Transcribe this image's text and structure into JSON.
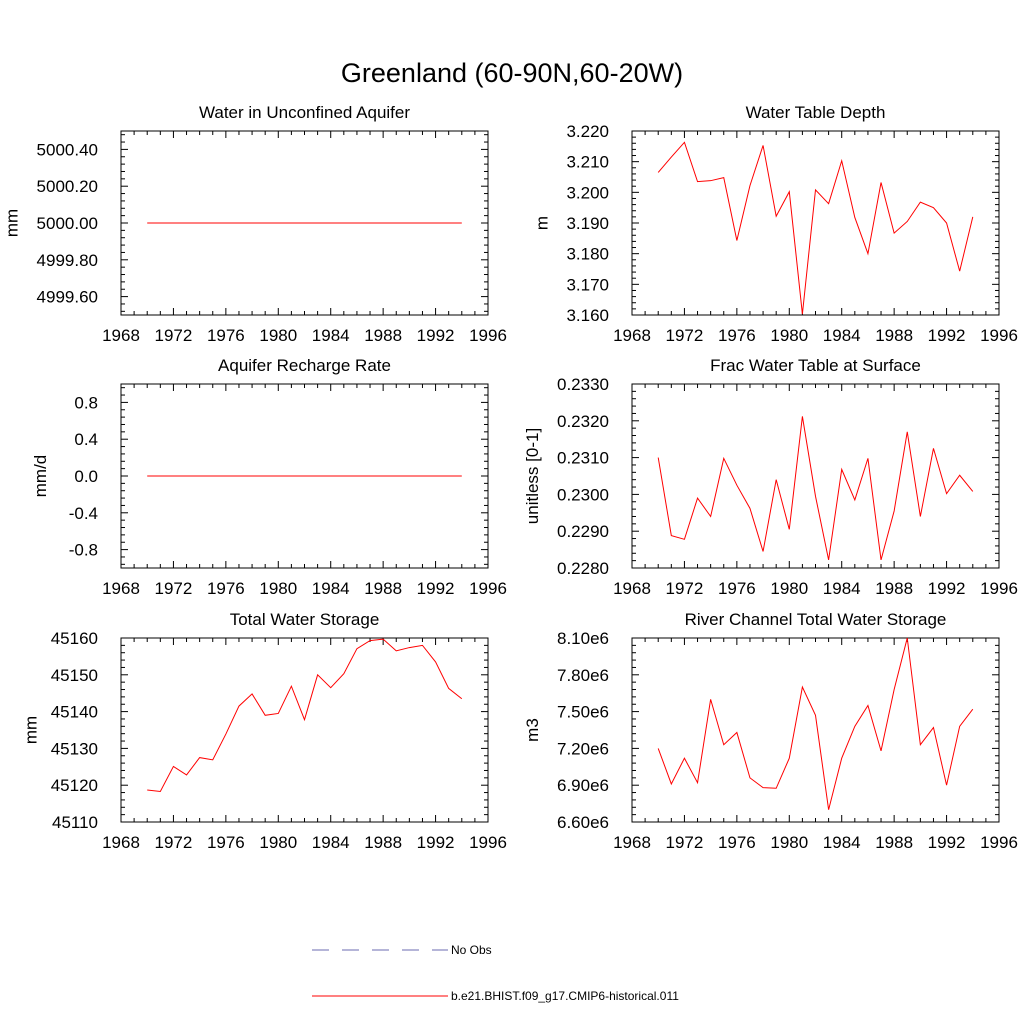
{
  "figure": {
    "title": "Greenland (60-90N,60-20W)"
  },
  "colors": {
    "model_line": "#ff0000",
    "obs_line": "#6b6bb0",
    "axes": "#000000"
  },
  "legend": {
    "items": [
      {
        "label": "No Obs",
        "style": "dashed",
        "color": "#6b6bb0"
      },
      {
        "label": "b.e21.BHIST.f09_g17.CMIP6-historical.011",
        "style": "solid",
        "color": "#ff0000"
      }
    ]
  },
  "chart_data": [
    {
      "type": "line",
      "title": "Water in Unconfined Aquifer",
      "ylabel": "mm",
      "xlim": [
        1968,
        1996
      ],
      "ylim": [
        4999.5,
        5000.5
      ],
      "xticks": [
        1968,
        1972,
        1976,
        1980,
        1984,
        1988,
        1992,
        1996
      ],
      "yticks": [
        4999.6,
        4999.8,
        5000.0,
        5000.2,
        5000.4
      ],
      "ytick_labels": [
        "4999.60",
        "4999.80",
        "5000.00",
        "5000.20",
        "5000.40"
      ],
      "x": [
        1970,
        1971,
        1972,
        1973,
        1974,
        1975,
        1976,
        1977,
        1978,
        1979,
        1980,
        1981,
        1982,
        1983,
        1984,
        1985,
        1986,
        1987,
        1988,
        1989,
        1990,
        1991,
        1992,
        1993,
        1994
      ],
      "series": [
        {
          "name": "b.e21.BHIST.f09_g17.CMIP6-historical.011",
          "values": [
            5000,
            5000,
            5000,
            5000,
            5000,
            5000,
            5000,
            5000,
            5000,
            5000,
            5000,
            5000,
            5000,
            5000,
            5000,
            5000,
            5000,
            5000,
            5000,
            5000,
            5000,
            5000,
            5000,
            5000,
            5000
          ]
        }
      ]
    },
    {
      "type": "line",
      "title": "Water Table Depth",
      "ylabel": "m",
      "xlim": [
        1968,
        1996
      ],
      "ylim": [
        3.16,
        3.22
      ],
      "xticks": [
        1968,
        1972,
        1976,
        1980,
        1984,
        1988,
        1992,
        1996
      ],
      "yticks": [
        3.16,
        3.17,
        3.18,
        3.19,
        3.2,
        3.21,
        3.22
      ],
      "ytick_labels": [
        "3.160",
        "3.170",
        "3.180",
        "3.190",
        "3.200",
        "3.210",
        "3.220"
      ],
      "x": [
        1970,
        1971,
        1972,
        1973,
        1974,
        1975,
        1976,
        1977,
        1978,
        1979,
        1980,
        1981,
        1982,
        1983,
        1984,
        1985,
        1986,
        1987,
        1988,
        1989,
        1990,
        1991,
        1992,
        1993,
        1994
      ],
      "series": [
        {
          "name": "b.e21.BHIST.f09_g17.CMIP6-historical.011",
          "values": [
            3.2065,
            3.2115,
            3.2163,
            3.2035,
            3.2038,
            3.2048,
            3.1843,
            3.2022,
            3.2153,
            3.1922,
            3.2002,
            3.1603,
            3.2008,
            3.1963,
            3.2103,
            3.1918,
            3.18,
            3.2032,
            3.1867,
            3.1905,
            3.1968,
            3.195,
            3.19,
            3.1743,
            3.192
          ]
        }
      ]
    },
    {
      "type": "line",
      "title": "Aquifer Recharge Rate",
      "ylabel": "mm/d",
      "xlim": [
        1968,
        1996
      ],
      "ylim": [
        -1.0,
        1.0
      ],
      "xticks": [
        1968,
        1972,
        1976,
        1980,
        1984,
        1988,
        1992,
        1996
      ],
      "yticks": [
        -0.8,
        -0.4,
        0.0,
        0.4,
        0.8
      ],
      "ytick_labels": [
        "-0.8",
        "-0.4",
        "0.0",
        "0.4",
        "0.8"
      ],
      "x": [
        1970,
        1971,
        1972,
        1973,
        1974,
        1975,
        1976,
        1977,
        1978,
        1979,
        1980,
        1981,
        1982,
        1983,
        1984,
        1985,
        1986,
        1987,
        1988,
        1989,
        1990,
        1991,
        1992,
        1993,
        1994
      ],
      "series": [
        {
          "name": "b.e21.BHIST.f09_g17.CMIP6-historical.011",
          "values": [
            0,
            0,
            0,
            0,
            0,
            0,
            0,
            0,
            0,
            0,
            0,
            0,
            0,
            0,
            0,
            0,
            0,
            0,
            0,
            0,
            0,
            0,
            0,
            0,
            0
          ]
        }
      ]
    },
    {
      "type": "line",
      "title": "Frac Water Table at Surface",
      "ylabel": "unitless [0-1]",
      "xlim": [
        1968,
        1996
      ],
      "ylim": [
        0.228,
        0.233
      ],
      "xticks": [
        1968,
        1972,
        1976,
        1980,
        1984,
        1988,
        1992,
        1996
      ],
      "yticks": [
        0.228,
        0.229,
        0.23,
        0.231,
        0.232,
        0.233
      ],
      "ytick_labels": [
        "0.2280",
        "0.2290",
        "0.2300",
        "0.2310",
        "0.2320",
        "0.2330"
      ],
      "x": [
        1970,
        1971,
        1972,
        1973,
        1974,
        1975,
        1976,
        1977,
        1978,
        1979,
        1980,
        1981,
        1982,
        1983,
        1984,
        1985,
        1986,
        1987,
        1988,
        1989,
        1990,
        1991,
        1992,
        1993,
        1994
      ],
      "series": [
        {
          "name": "b.e21.BHIST.f09_g17.CMIP6-historical.011",
          "values": [
            0.231,
            0.22888,
            0.22878,
            0.2299,
            0.2294,
            0.23098,
            0.23025,
            0.22962,
            0.22845,
            0.2304,
            0.22905,
            0.23212,
            0.22995,
            0.22822,
            0.23068,
            0.22985,
            0.23098,
            0.22822,
            0.22955,
            0.2317,
            0.2294,
            0.23125,
            0.23002,
            0.23052,
            0.23008
          ]
        }
      ]
    },
    {
      "type": "line",
      "title": "Total Water Storage",
      "ylabel": "mm",
      "xlim": [
        1968,
        1996
      ],
      "ylim": [
        45110,
        45160
      ],
      "xticks": [
        1968,
        1972,
        1976,
        1980,
        1984,
        1988,
        1992,
        1996
      ],
      "yticks": [
        45110,
        45120,
        45130,
        45140,
        45150,
        45160
      ],
      "ytick_labels": [
        "45110",
        "45120",
        "45130",
        "45140",
        "45150",
        "45160"
      ],
      "x": [
        1970,
        1971,
        1972,
        1973,
        1974,
        1975,
        1976,
        1977,
        1978,
        1979,
        1980,
        1981,
        1982,
        1983,
        1984,
        1985,
        1986,
        1987,
        1988,
        1989,
        1990,
        1991,
        1992,
        1993,
        1994
      ],
      "series": [
        {
          "name": "b.e21.BHIST.f09_g17.CMIP6-historical.011",
          "values": [
            45118.7,
            45118.3,
            45125.1,
            45122.8,
            45127.5,
            45126.9,
            45133.9,
            45141.5,
            45144.8,
            45139.0,
            45139.5,
            45146.9,
            45137.8,
            45150.0,
            45146.5,
            45150.3,
            45157.1,
            45159.3,
            45159.7,
            45156.5,
            45157.4,
            45158.0,
            45153.5,
            45146.3,
            45143.5
          ]
        }
      ]
    },
    {
      "type": "line",
      "title": "River Channel Total Water Storage",
      "ylabel": "m3",
      "xlim": [
        1968,
        1996
      ],
      "ylim": [
        6600000,
        8100000
      ],
      "xticks": [
        1968,
        1972,
        1976,
        1980,
        1984,
        1988,
        1992,
        1996
      ],
      "yticks": [
        6600000,
        6900000,
        7200000,
        7500000,
        7800000,
        8100000
      ],
      "ytick_labels": [
        "6.60e6",
        "6.90e6",
        "7.20e6",
        "7.50e6",
        "7.80e6",
        "8.10e6"
      ],
      "x": [
        1970,
        1971,
        1972,
        1973,
        1974,
        1975,
        1976,
        1977,
        1978,
        1979,
        1980,
        1981,
        1982,
        1983,
        1984,
        1985,
        1986,
        1987,
        1988,
        1989,
        1990,
        1991,
        1992,
        1993,
        1994
      ],
      "series": [
        {
          "name": "b.e21.BHIST.f09_g17.CMIP6-historical.011",
          "values": [
            7200000,
            6910000,
            7120000,
            6920000,
            7600000,
            7230000,
            7330000,
            6960000,
            6880000,
            6875000,
            7120000,
            7700000,
            7470000,
            6700000,
            7120000,
            7380000,
            7550000,
            7180000,
            7680000,
            8100000,
            7230000,
            7370000,
            6900000,
            7380000,
            7520000
          ]
        }
      ]
    }
  ]
}
